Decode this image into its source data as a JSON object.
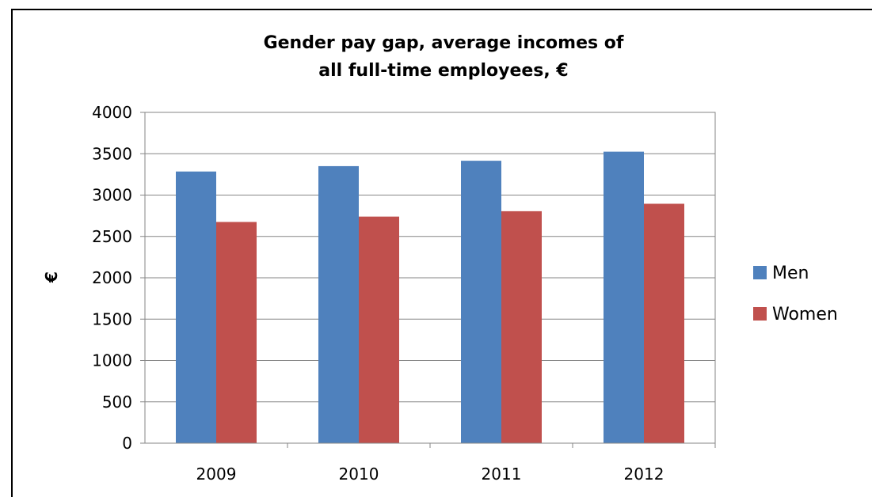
{
  "chart_data": {
    "type": "bar",
    "title_lines": [
      "Gender pay gap, average incomes of",
      "all full-time employees, €"
    ],
    "xlabel": "",
    "ylabel": "€",
    "categories": [
      "2009",
      "2010",
      "2011",
      "2012"
    ],
    "series": [
      {
        "name": "Men",
        "color": "#4F81BD",
        "values": [
          3285,
          3350,
          3415,
          3525
        ]
      },
      {
        "name": "Women",
        "color": "#C0504D",
        "values": [
          2675,
          2740,
          2805,
          2895
        ]
      }
    ],
    "ylim": [
      0,
      4000
    ],
    "yticks": [
      "0",
      "500",
      "1000",
      "1500",
      "2000",
      "2500",
      "3000",
      "3500",
      "4000"
    ],
    "grid": true,
    "legend_position": "right"
  }
}
